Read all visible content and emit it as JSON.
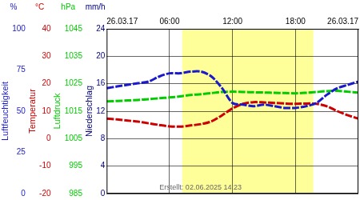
{
  "chart_data": {
    "type": "line",
    "grid": true,
    "line_style": "dashed",
    "x": [
      0,
      1,
      2,
      3,
      4,
      5,
      6,
      7,
      8,
      9,
      10,
      11,
      12,
      13,
      14,
      15,
      16,
      17,
      18,
      19,
      20,
      21,
      22,
      23,
      24
    ],
    "xlim": [
      0,
      24
    ],
    "xticks": [
      {
        "value": 6,
        "label": "06:00"
      },
      {
        "value": 12,
        "label": "12:00"
      },
      {
        "value": 18,
        "label": "18:00"
      }
    ],
    "date_labels": [
      "26.03.17",
      "26.03.17"
    ],
    "daylight": [
      7.2,
      19.7
    ],
    "footnote": "Erstellt: 02.06.2025 14:23",
    "axes": [
      {
        "unit": "%",
        "label": "Luftfeuchtigkeit",
        "color": "#1a1acc",
        "ylim": [
          0,
          100
        ],
        "yticks": [
          0,
          25,
          50,
          75,
          100
        ],
        "values": [
          64,
          65,
          66,
          67,
          68,
          71,
          73,
          73,
          74,
          74,
          71,
          64,
          55,
          54,
          53,
          54,
          53,
          52,
          52,
          53,
          55,
          60,
          64,
          66,
          68
        ]
      },
      {
        "unit": "°C",
        "label": "Temperatur",
        "color": "#cc0000",
        "ylim": [
          -20,
          40
        ],
        "yticks": [
          -20,
          -10,
          0,
          10,
          20,
          30,
          40
        ],
        "values": [
          7.3,
          7.0,
          6.6,
          6.2,
          5.6,
          5.0,
          4.5,
          4.4,
          4.8,
          5.3,
          6.3,
          8.5,
          11.0,
          12.7,
          13.3,
          13.2,
          13.0,
          12.8,
          12.7,
          12.8,
          12.7,
          11.8,
          10.0,
          8.5,
          7.3
        ]
      },
      {
        "unit": "hPa",
        "label": "Luftdruck",
        "color": "#00cc00",
        "ylim": [
          985,
          1045
        ],
        "yticks": [
          985,
          995,
          1005,
          1015,
          1025,
          1035,
          1045
        ],
        "values": [
          1018.6,
          1018.7,
          1018.9,
          1019.1,
          1019.4,
          1019.7,
          1020.0,
          1020.4,
          1020.9,
          1021.2,
          1021.6,
          1022.0,
          1022.1,
          1022.0,
          1021.9,
          1021.8,
          1021.7,
          1021.6,
          1021.5,
          1021.7,
          1022.0,
          1022.3,
          1022.4,
          1022.1,
          1021.8
        ]
      },
      {
        "unit": "mm/h",
        "label": "Niederschlag",
        "color": "#000080",
        "ylim": [
          0,
          24
        ],
        "yticks": [
          0,
          4,
          8,
          12,
          16,
          20,
          24
        ]
      }
    ]
  }
}
